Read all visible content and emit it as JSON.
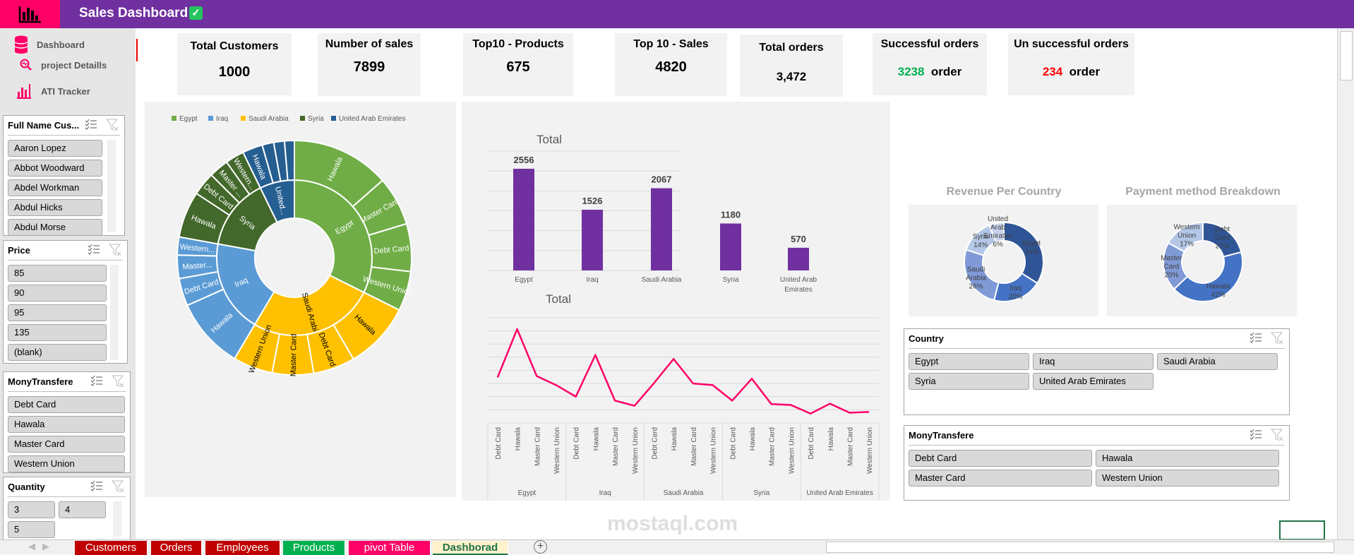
{
  "header": {
    "title": "Sales Dashboard",
    "check_icon": "check-square-icon",
    "logo_icon": "bar-chart-icon",
    "colors": {
      "bar": "#7030a0",
      "logo": "#ff0066"
    }
  },
  "sidebar": {
    "items": [
      {
        "label": "Dashboard",
        "icon": "database-icon"
      },
      {
        "label": "project Detaills",
        "icon": "magnifier-pulse-icon"
      },
      {
        "label": "ATI Tracker",
        "icon": "bar-chart-icon"
      }
    ]
  },
  "kpis": [
    {
      "title": "Total Customers",
      "value": "1000"
    },
    {
      "title": "Number of sales",
      "value": "7899"
    },
    {
      "title": "Top10 -  Products",
      "value": "675"
    },
    {
      "title": "Top 10 - Sales",
      "value": "4820"
    },
    {
      "title": "Total orders",
      "value": "3,472"
    },
    {
      "title": "Successful orders",
      "value": "3238",
      "suffix": "order",
      "value_color": "#00b050"
    },
    {
      "title": "Un successful orders",
      "value": "234",
      "suffix": "order",
      "value_color": "#ff0000"
    }
  ],
  "slicers": {
    "full_name": {
      "title": "Full Name Cus...",
      "items": [
        "Aaron Lopez",
        "Abbot Woodward",
        "Abdel Workman",
        "Abdul Hicks",
        "Abdul Morse"
      ]
    },
    "price": {
      "title": "Price",
      "items": [
        "85",
        "90",
        "95",
        "135",
        "(blank)"
      ]
    },
    "mony_left": {
      "title": "MonyTransfere",
      "items": [
        "Debt Card",
        "Hawala",
        "Master Card",
        "Western Union"
      ]
    },
    "quantity": {
      "title": "Quantity",
      "items": [
        "3",
        "4",
        "5"
      ]
    },
    "country": {
      "title": "Country",
      "items": [
        "Egypt",
        "Iraq",
        "Saudi Arabia",
        "Syria",
        "United Arab Emirates"
      ]
    },
    "mony_right": {
      "title": "MonyTransfere",
      "items": [
        "Debt Card",
        "Hawala",
        "Master Card",
        "Western Union"
      ]
    }
  },
  "chart_data": [
    {
      "type": "sunburst",
      "legend": [
        "Egypt",
        "Iraq",
        "Saudi Arabia",
        "Syria",
        "United Arab Emirates"
      ],
      "legend_position": "top",
      "colors": {
        "Egypt": "#70ad47",
        "Iraq": "#5b9bd5",
        "Saudi Arabia": "#ffc000",
        "Syria": "#43682b",
        "United Arab Emirates": "#255e91"
      },
      "data": [
        {
          "name": "Egypt",
          "label": "Egypt",
          "children": [
            {
              "name": "Hawala",
              "label": "Hawala",
              "value": 1070
            },
            {
              "name": "Master Card",
              "label": "Master Card",
              "value": 535
            },
            {
              "name": "Debt Card",
              "label": "Debt Card",
              "value": 520
            },
            {
              "name": "Western Union",
              "label": "Western Union",
              "value": 431
            }
          ]
        },
        {
          "name": "Saudi Arabia",
          "label": "Saudi Arabia",
          "children": [
            {
              "name": "Hawala",
              "label": "Hawala",
              "value": 730
            },
            {
              "name": "Debt Card",
              "label": "Debt Card",
              "value": 455
            },
            {
              "name": "Master Card",
              "label": "Master Card",
              "value": 450
            },
            {
              "name": "Western Union",
              "label": "Western Union",
              "value": 432
            }
          ]
        },
        {
          "name": "Iraq",
          "label": "Iraq",
          "children": [
            {
              "name": "Hawala",
              "label": "Hawala",
              "value": 775
            },
            {
              "name": "Debt Card",
              "label": "Debt Card",
              "value": 300
            },
            {
              "name": "Master Card",
              "label": "Master...",
              "value": 255
            },
            {
              "name": "Western Union",
              "label": "Western...",
              "value": 196
            }
          ]
        },
        {
          "name": "Syria",
          "label": "Syria",
          "children": [
            {
              "name": "Hawala",
              "label": "Hawala",
              "value": 505
            },
            {
              "name": "Debt Card",
              "label": "Debt Card",
              "value": 255
            },
            {
              "name": "Master Card",
              "label": "Master ...",
              "value": 215
            },
            {
              "name": "Western Union",
              "label": "Western...",
              "value": 205
            }
          ]
        },
        {
          "name": "United Arab Emirates",
          "label": "United...",
          "children": [
            {
              "name": "Hawala",
              "label": "Hawala",
              "value": 220
            },
            {
              "name": "Western Union",
              "label": "",
              "value": 126
            },
            {
              "name": "Master Card",
              "label": "",
              "value": 117
            },
            {
              "name": "Debt Card",
              "label": "",
              "value": 107
            }
          ]
        }
      ]
    },
    {
      "type": "bar",
      "title": "Total",
      "categories": [
        "Egypt",
        "Iraq",
        "Saudi Arabia",
        "Syria",
        "United Arab Emirates"
      ],
      "values": [
        2556,
        1526,
        2067,
        1180,
        570
      ],
      "ylim": [
        0,
        3000
      ],
      "grid": true,
      "color": "#7030a0",
      "data_labels": true
    },
    {
      "type": "line",
      "title": "Total",
      "groups": [
        "Egypt",
        "Iraq",
        "Saudi Arabia",
        "Syria",
        "United Arab Emirates"
      ],
      "categories": [
        "Debt Card",
        "Hawala",
        "Master Card",
        "Western Union"
      ],
      "values": [
        [
          520,
          1070,
          535,
          431
        ],
        [
          300,
          775,
          255,
          196
        ],
        [
          455,
          730,
          450,
          432
        ],
        [
          255,
          505,
          215,
          205
        ],
        [
          107,
          220,
          117,
          126
        ]
      ],
      "ylim": [
        0,
        1200
      ],
      "grid": true,
      "color": "#ff0066"
    },
    {
      "type": "pie",
      "title": "Revenue Per Country",
      "donut": true,
      "labels": [
        "Egypt",
        "Iraq",
        "Saudi Arabia",
        "Syria",
        "United Arab Emirates"
      ],
      "values": [
        34,
        20,
        26,
        14,
        6
      ],
      "value_labels": [
        "34%",
        "20%",
        "26%",
        "14%",
        "6%"
      ],
      "colors": [
        "#2f5597",
        "#4472c4",
        "#7f9ad6",
        "#b4c7e7",
        "#c9d5ee"
      ]
    },
    {
      "type": "pie",
      "title": "Payment method Breakdown",
      "donut": true,
      "labels": [
        "Debt Card",
        "Hawala",
        "Master Card",
        "Western Union"
      ],
      "values": [
        21,
        42,
        20,
        17
      ],
      "value_labels": [
        "21%",
        "42%",
        "20%",
        "17%"
      ],
      "colors": [
        "#2f5597",
        "#4472c4",
        "#7f9ad6",
        "#b4c7e7"
      ]
    }
  ],
  "sheet_tabs": [
    {
      "label": "Customers",
      "color": "#c00000"
    },
    {
      "label": "Orders",
      "color": "#c00000"
    },
    {
      "label": "Employees",
      "color": "#c00000"
    },
    {
      "label": "Products",
      "color": "#00b050"
    },
    {
      "label": "pivot Table",
      "color": "#ff0066"
    },
    {
      "label": "Dashborad",
      "color": "#fff2cc",
      "active": true
    }
  ],
  "watermark": "mostaql.com"
}
